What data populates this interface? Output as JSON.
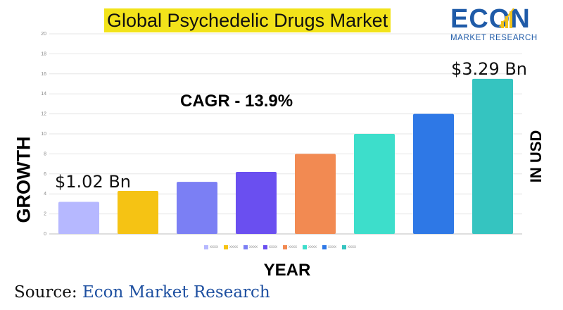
{
  "title": "Global Psychedelic Drugs Market",
  "logo": {
    "word": "ECON",
    "subtitle": "MARKET RESEARCH",
    "color": "#1f5ba8"
  },
  "annotations": {
    "cagr": "CAGR - 13.9%",
    "start_value": "$1.02 Bn",
    "end_value": "$3.29 Bn"
  },
  "axis_labels": {
    "left": "GROWTH",
    "right": "IN USD",
    "x": "YEAR"
  },
  "source": {
    "prefix": "Source:",
    "name": "Econ Market Research"
  },
  "chart_data": {
    "type": "bar",
    "categories": [
      "xxxx",
      "xxxx",
      "xxxx",
      "xxxx",
      "xxxx",
      "xxxx",
      "xxxx",
      "xxxx"
    ],
    "values": [
      3.2,
      4.3,
      5.2,
      6.2,
      8,
      10,
      12,
      15.5
    ],
    "colors": [
      "#b6b8ff",
      "#f5c314",
      "#7b7ff4",
      "#6a4ff0",
      "#f28a52",
      "#3ddecb",
      "#2e78e6",
      "#35c4c0"
    ],
    "ylim": [
      0,
      20
    ],
    "yticks": [
      0,
      2,
      4,
      6,
      8,
      10,
      12,
      14,
      16,
      18,
      20
    ],
    "grid": true,
    "legend": "bottom"
  }
}
